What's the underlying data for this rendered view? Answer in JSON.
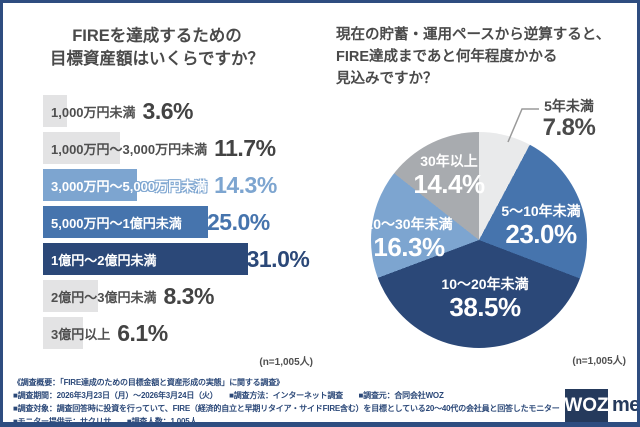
{
  "colors": {
    "navy": "#2b4878",
    "mid_blue": "#4674ad",
    "light_blue": "#7da5d0",
    "bar_gray": "#e3e3e4",
    "pie_light_gray": "#e9eaeb",
    "pie_gray": "#a8abaf",
    "title_text": "#4a4a4a",
    "dark_label": "#434343",
    "footer_navy": "#2b4878",
    "logo_navy": "#253a5c",
    "border": "#2e4d80",
    "leader_line": "#9a9a9a"
  },
  "left_chart": {
    "title_lines": [
      "FIREを達成するための",
      "目標資産額はいくらですか？"
    ],
    "n_note": "(n=1,005人)"
  },
  "right_chart": {
    "title_lines": [
      "現在の貯蓄・運用ペースから逆算すると、",
      "FIRE達成まであと何年程度かかる",
      "見込みですか？"
    ],
    "n_note": "(n=1,005人)"
  },
  "chart_data": [
    {
      "type": "bar",
      "orientation": "horizontal",
      "title": "FIREを達成するための目標資産額はいくらですか？",
      "categories": [
        "1,000万円未満",
        "1,000万円〜3,000万円未満",
        "3,000万円〜5,000万円未満",
        "5,000万円〜1億円未満",
        "1億円〜2億円未満",
        "2億円〜3億円未満",
        "3億円以上"
      ],
      "values": [
        3.6,
        11.7,
        14.3,
        25.0,
        31.0,
        8.3,
        6.1
      ],
      "unit": "%",
      "bar_color_keys": [
        "bar_gray",
        "bar_gray",
        "light_blue",
        "mid_blue",
        "navy",
        "bar_gray",
        "bar_gray"
      ],
      "xlim": [
        0,
        35
      ],
      "sample_note": "(n=1,005人)"
    },
    {
      "type": "pie",
      "title": "現在の貯蓄・運用ペースから逆算すると、FIRE達成まであと何年程度かかる見込みですか？",
      "categories": [
        "5年未満",
        "5〜10年未満",
        "10〜20年未満",
        "20〜30年未満",
        "30年以上"
      ],
      "values": [
        7.8,
        23.0,
        38.5,
        16.3,
        14.4
      ],
      "unit": "%",
      "slice_color_keys": [
        "pie_light_gray",
        "mid_blue",
        "navy",
        "light_blue",
        "pie_gray"
      ],
      "start_angle_deg": 0,
      "direction": "clockwise",
      "legend_position": "labels-on-slices",
      "sample_note": "(n=1,005人)"
    }
  ],
  "footer": {
    "lines": [
      "《調査概要：「FIRE達成のための目標金額と資産形成の実態」に関する調査》",
      "■調査期間：2026年3月23日（月）〜2026年3月24日（火）　　■調査方法：インターネット調査　　■調査元：合同会社WOZ",
      "■調査対象：調査回答時に投資を行っていて、FIRE（経済的自立と早期リタイア・サイドFIRE含む）を目標としている20〜40代の会社員と回答したモニター",
      "■モニター提供元：サクリサ　　■調査人数：1,005人"
    ],
    "logo": {
      "mark": "WOZ",
      "text": "media"
    }
  }
}
